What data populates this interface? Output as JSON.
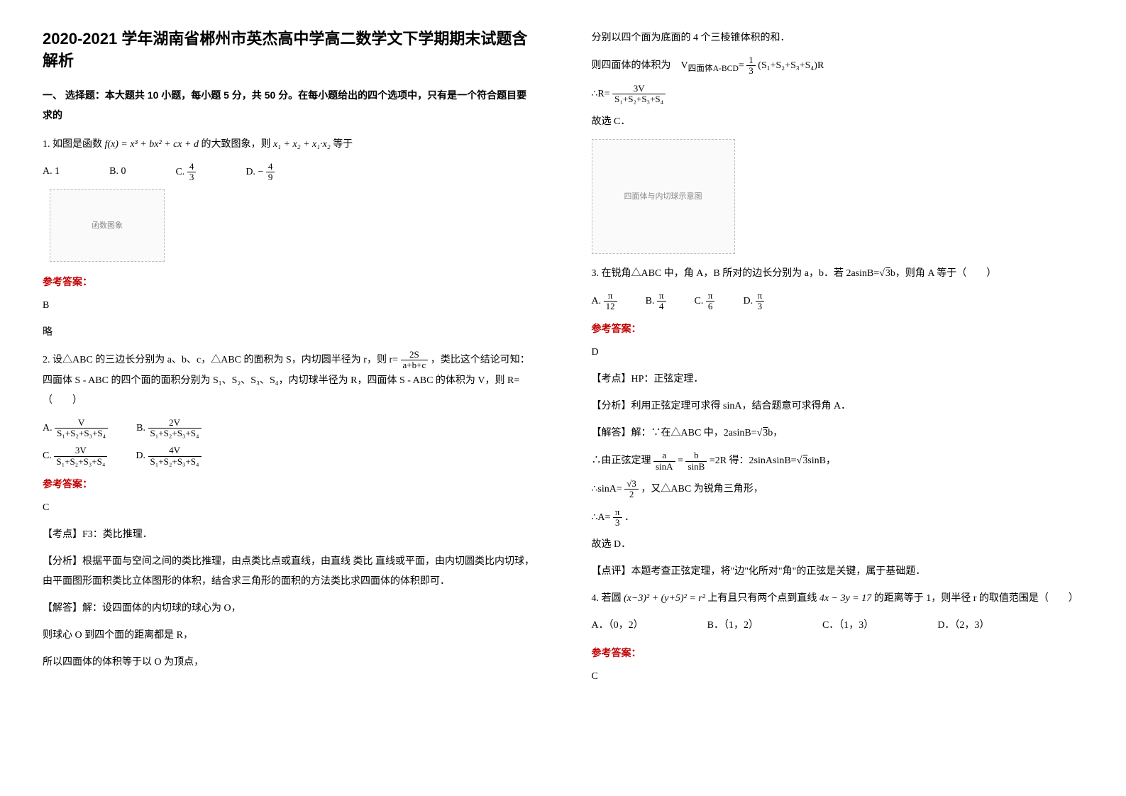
{
  "title": "2020-2021 学年湖南省郴州市英杰高中学高二数学文下学期期末试题含解析",
  "section1_head": "一、 选择题：本大题共 10 小题，每小题 5 分，共 50 分。在每小题给出的四个选项中，只有是一个符合题目要求的",
  "q1": {
    "stem_a": "1. 如图是函数",
    "stem_b": "f(x) = x³ + bx² + cx + d",
    "stem_c": " 的大致图象，则 ",
    "stem_d": "x₁ + x₂ + x₁·x₂",
    "stem_e": " 等于",
    "optA_l": "A. 1",
    "optB_l": "B. 0",
    "optC_l": "C. ",
    "optC_num": "4",
    "optC_den": "3",
    "optD_l": "D. ",
    "optD_neg": "−",
    "optD_num": "4",
    "optD_den": "9",
    "fig": "函数图象",
    "answer_label": "参考答案：",
    "answer": "B",
    "answer_note": "略"
  },
  "q2": {
    "stem_a": "2. 设△ABC 的三边长分别为 a、b、c，△ABC 的面积为 S，内切圆半径为 r，则 ",
    "stem_b_prefix": "r=",
    "stem_b_num": "2S",
    "stem_b_den": "a+b+c",
    "stem_c": "，类比这个结论可知：四面体 S - ABC 的四个面的面积分别为 S₁、S₂、S₃、S₄，内切球半径为 R，四面体 S - ABC 的体积为 V，则 R=（　　）",
    "optA_l": "A. ",
    "optA_num": "V",
    "optA_den": "S₁+S₂+S₃+S₄",
    "optB_l": "B. ",
    "optB_num": "2V",
    "optB_den": "S₁+S₂+S₃+S₄",
    "optC_l": "C. ",
    "optC_num": "3V",
    "optC_den": "S₁+S₂+S₃+S₄",
    "optD_l": "D. ",
    "optD_num": "4V",
    "optD_den": "S₁+S₂+S₃+S₄",
    "answer_label": "参考答案：",
    "answer": "C",
    "exp1": "【考点】F3：类比推理．",
    "exp2": "【分析】根据平面与空间之间的类比推理，由点类比点或直线，由直线 类比 直线或平面，由内切圆类比内切球，由平面图形面积类比立体图形的体积，结合求三角形的面积的方法类比求四面体的体积即可．",
    "exp3": "【解答】解：设四面体的内切球的球心为 O，",
    "exp4": "则球心 O 到四个面的距离都是 R，",
    "exp5": "所以四面体的体积等于以 O 为顶点，",
    "exp6": "分别以四个面为底面的 4 个三棱锥体积的和．",
    "exp7_a": "则四面体的体积为　V",
    "exp7_b": "四面体A-BCD",
    "exp7_c": "=",
    "exp7_num": "1",
    "exp7_den": "3",
    "exp7_d": "(S₁+S₂+S₃+S₄)R",
    "exp8_a": "∴R=",
    "exp8_num": "3V",
    "exp8_den": "S₁+S₂+S₃+S₄",
    "exp9": "故选 C．",
    "fig": "四面体与内切球示意图"
  },
  "q3": {
    "stem_a": "3. 在锐角△ABC 中，角 A，B 所对的边长分别为 a，b．若 2asinB=",
    "stem_b": "3",
    "stem_c": "b，则角 A 等于（　　）",
    "optA_l": "A. ",
    "optA_num": "π",
    "optA_den": "12",
    "optB_l": "B. ",
    "optB_num": "π",
    "optB_den": "4",
    "optC_l": "C. ",
    "optC_num": "π",
    "optC_den": "6",
    "optD_l": "D. ",
    "optD_num": "π",
    "optD_den": "3",
    "answer_label": "参考答案：",
    "answer": "D",
    "exp1": "【考点】HP：正弦定理．",
    "exp2": "【分析】利用正弦定理可求得 sinA，结合题意可求得角 A．",
    "exp3_a": "【解答】解：∵在△ABC 中，2asinB=",
    "exp3_b": "3",
    "exp3_c": "b，",
    "exp4_a": "∴由正弦定理",
    "exp4_num1": "a",
    "exp4_den1": "sinA",
    "exp4_eq": " = ",
    "exp4_num2": "b",
    "exp4_den2": "sinB",
    "exp4_b": " =2R 得：2sinAsinB=",
    "exp4_c": "3",
    "exp4_d": "sinB，",
    "exp5_a": "∴sinA= ",
    "exp5_num": "√3",
    "exp5_den": "2",
    "exp5_b": " ，又△ABC 为锐角三角形，",
    "exp6_a": "∴A= ",
    "exp6_num": "π",
    "exp6_den": "3",
    "exp6_b": " ．",
    "exp7": "故选 D．",
    "exp8": "【点评】本题考查正弦定理，将\"边\"化所对\"角\"的正弦是关键，属于基础题．"
  },
  "q4": {
    "stem_a": "4. 若圆",
    "stem_b": "(x−3)² + (y+5)² = r²",
    "stem_c": " 上有且只有两个点到直线 ",
    "stem_d": "4x − 3y = 17",
    "stem_e": " 的距离等于 1，则半径 r 的取值范围是（　　）",
    "optA": "A．（0，2）",
    "optB": "B．（1，2）",
    "optC": "C．（1，3）",
    "optD": "D．（2，3）",
    "answer_label": "参考答案：",
    "answer": "C"
  }
}
